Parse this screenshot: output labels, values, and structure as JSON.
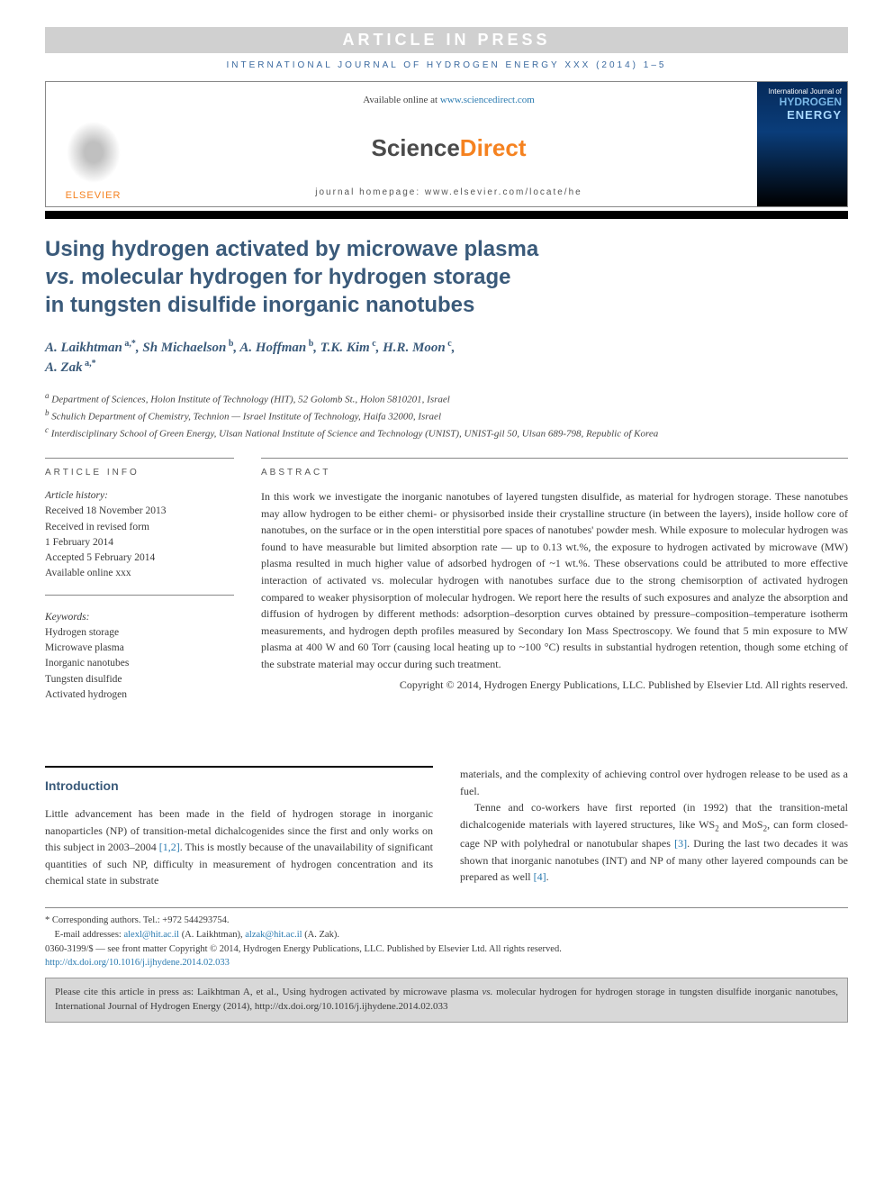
{
  "banner": "ARTICLE IN PRESS",
  "journal_ref": "INTERNATIONAL JOURNAL OF HYDROGEN ENERGY XXX (2014) 1–5",
  "header": {
    "available_prefix": "Available online at ",
    "available_link": "www.sciencedirect.com",
    "sd_logo_left": "Science",
    "sd_logo_right": "Direct",
    "homepage": "journal homepage: www.elsevier.com/locate/he",
    "elsevier": "ELSEVIER",
    "cover_line1": "International Journal of",
    "cover_line2": "HYDROGEN",
    "cover_line3": "ENERGY"
  },
  "title_line1": "Using hydrogen activated by microwave plasma",
  "title_vs": "vs.",
  "title_line2": " molecular hydrogen for hydrogen storage",
  "title_line3": "in tungsten disulfide inorganic nanotubes",
  "authors_html": "A. Laikhtman <sup>a,*</sup>, Sh Michaelson <sup>b</sup>, A. Hoffman <sup>b</sup>, T.K. Kim <sup>c</sup>, H.R. Moon <sup>c</sup>, A. Zak <sup>a,*</sup>",
  "affiliations": {
    "a": "Department of Sciences, Holon Institute of Technology (HIT), 52 Golomb St., Holon 5810201, Israel",
    "b": "Schulich Department of Chemistry, Technion — Israel Institute of Technology, Haifa 32000, Israel",
    "c": "Interdisciplinary School of Green Energy, Ulsan National Institute of Science and Technology (UNIST), UNIST-gil 50, Ulsan 689-798, Republic of Korea"
  },
  "info_heading": "ARTICLE INFO",
  "history": {
    "label": "Article history:",
    "received": "Received 18 November 2013",
    "revised1": "Received in revised form",
    "revised2": "1 February 2014",
    "accepted": "Accepted 5 February 2014",
    "online": "Available online xxx"
  },
  "keywords": {
    "label": "Keywords:",
    "items": [
      "Hydrogen storage",
      "Microwave plasma",
      "Inorganic nanotubes",
      "Tungsten disulfide",
      "Activated hydrogen"
    ]
  },
  "abstract_heading": "ABSTRACT",
  "abstract_body": "In this work we investigate the inorganic nanotubes of layered tungsten disulfide, as material for hydrogen storage. These nanotubes may allow hydrogen to be either chemi- or physisorbed inside their crystalline structure (in between the layers), inside hollow core of nanotubes, on the surface or in the open interstitial pore spaces of nanotubes' powder mesh. While exposure to molecular hydrogen was found to have measurable but limited absorption rate — up to 0.13 wt.%, the exposure to hydrogen activated by microwave (MW) plasma resulted in much higher value of adsorbed hydrogen of ~1 wt.%. These observations could be attributed to more effective interaction of activated vs. molecular hydrogen with nanotubes surface due to the strong chemisorption of activated hydrogen compared to weaker physisorption of molecular hydrogen. We report here the results of such exposures and analyze the absorption and diffusion of hydrogen by different methods: adsorption–desorption curves obtained by pressure–composition–temperature isotherm measurements, and hydrogen depth profiles measured by Secondary Ion Mass Spectroscopy. We found that 5 min exposure to MW plasma at 400 W and 60 Torr (causing local heating up to ~100 °C) results in substantial hydrogen retention, though some etching of the substrate material may occur during such treatment.",
  "abstract_copyright": "Copyright © 2014, Hydrogen Energy Publications, LLC. Published by Elsevier Ltd. All rights reserved.",
  "intro_heading": "Introduction",
  "intro_left": "Little advancement has been made in the field of hydrogen storage in inorganic nanoparticles (NP) of transition-metal dichalcogenides since the first and only works on this subject in 2003–2004 [1,2]. This is mostly because of the unavailability of significant quantities of such NP, difficulty in measurement of hydrogen concentration and its chemical state in substrate",
  "intro_right1": "materials, and the complexity of achieving control over hydrogen release to be used as a fuel.",
  "intro_right2": "Tenne and co-workers have first reported (in 1992) that the transition-metal dichalcogenide materials with layered structures, like WS₂ and MoS₂, can form closed-cage NP with polyhedral or nanotubular shapes [3]. During the last two decades it was shown that inorganic nanotubes (INT) and NP of many other layered compounds can be prepared as well [4].",
  "footnotes": {
    "corr": "* Corresponding authors. Tel.: +972 544293754.",
    "email_label": "E-mail addresses: ",
    "email1": "alexl@hit.ac.il",
    "email1_name": " (A. Laikhtman), ",
    "email2": "alzak@hit.ac.il",
    "email2_name": " (A. Zak).",
    "issn": "0360-3199/$ — see front matter Copyright © 2014, Hydrogen Energy Publications, LLC. Published by Elsevier Ltd. All rights reserved.",
    "doi": "http://dx.doi.org/10.1016/j.ijhydene.2014.02.033"
  },
  "cite": {
    "prefix": "Please cite this article in press as: Laikhtman A, et al., Using hydrogen activated by microwave plasma ",
    "vs": "vs.",
    "rest": " molecular hydrogen for hydrogen storage in tungsten disulfide inorganic nanotubes, International Journal of Hydrogen Energy (2014), http://dx.doi.org/10.1016/j.ijhydene.2014.02.033"
  },
  "colors": {
    "heading_blue": "#3a5a7a",
    "link_blue": "#2a7ab0",
    "elsevier_orange": "#f58220",
    "banner_gray": "#d0d0d0",
    "cite_gray": "#d8d8d8"
  }
}
